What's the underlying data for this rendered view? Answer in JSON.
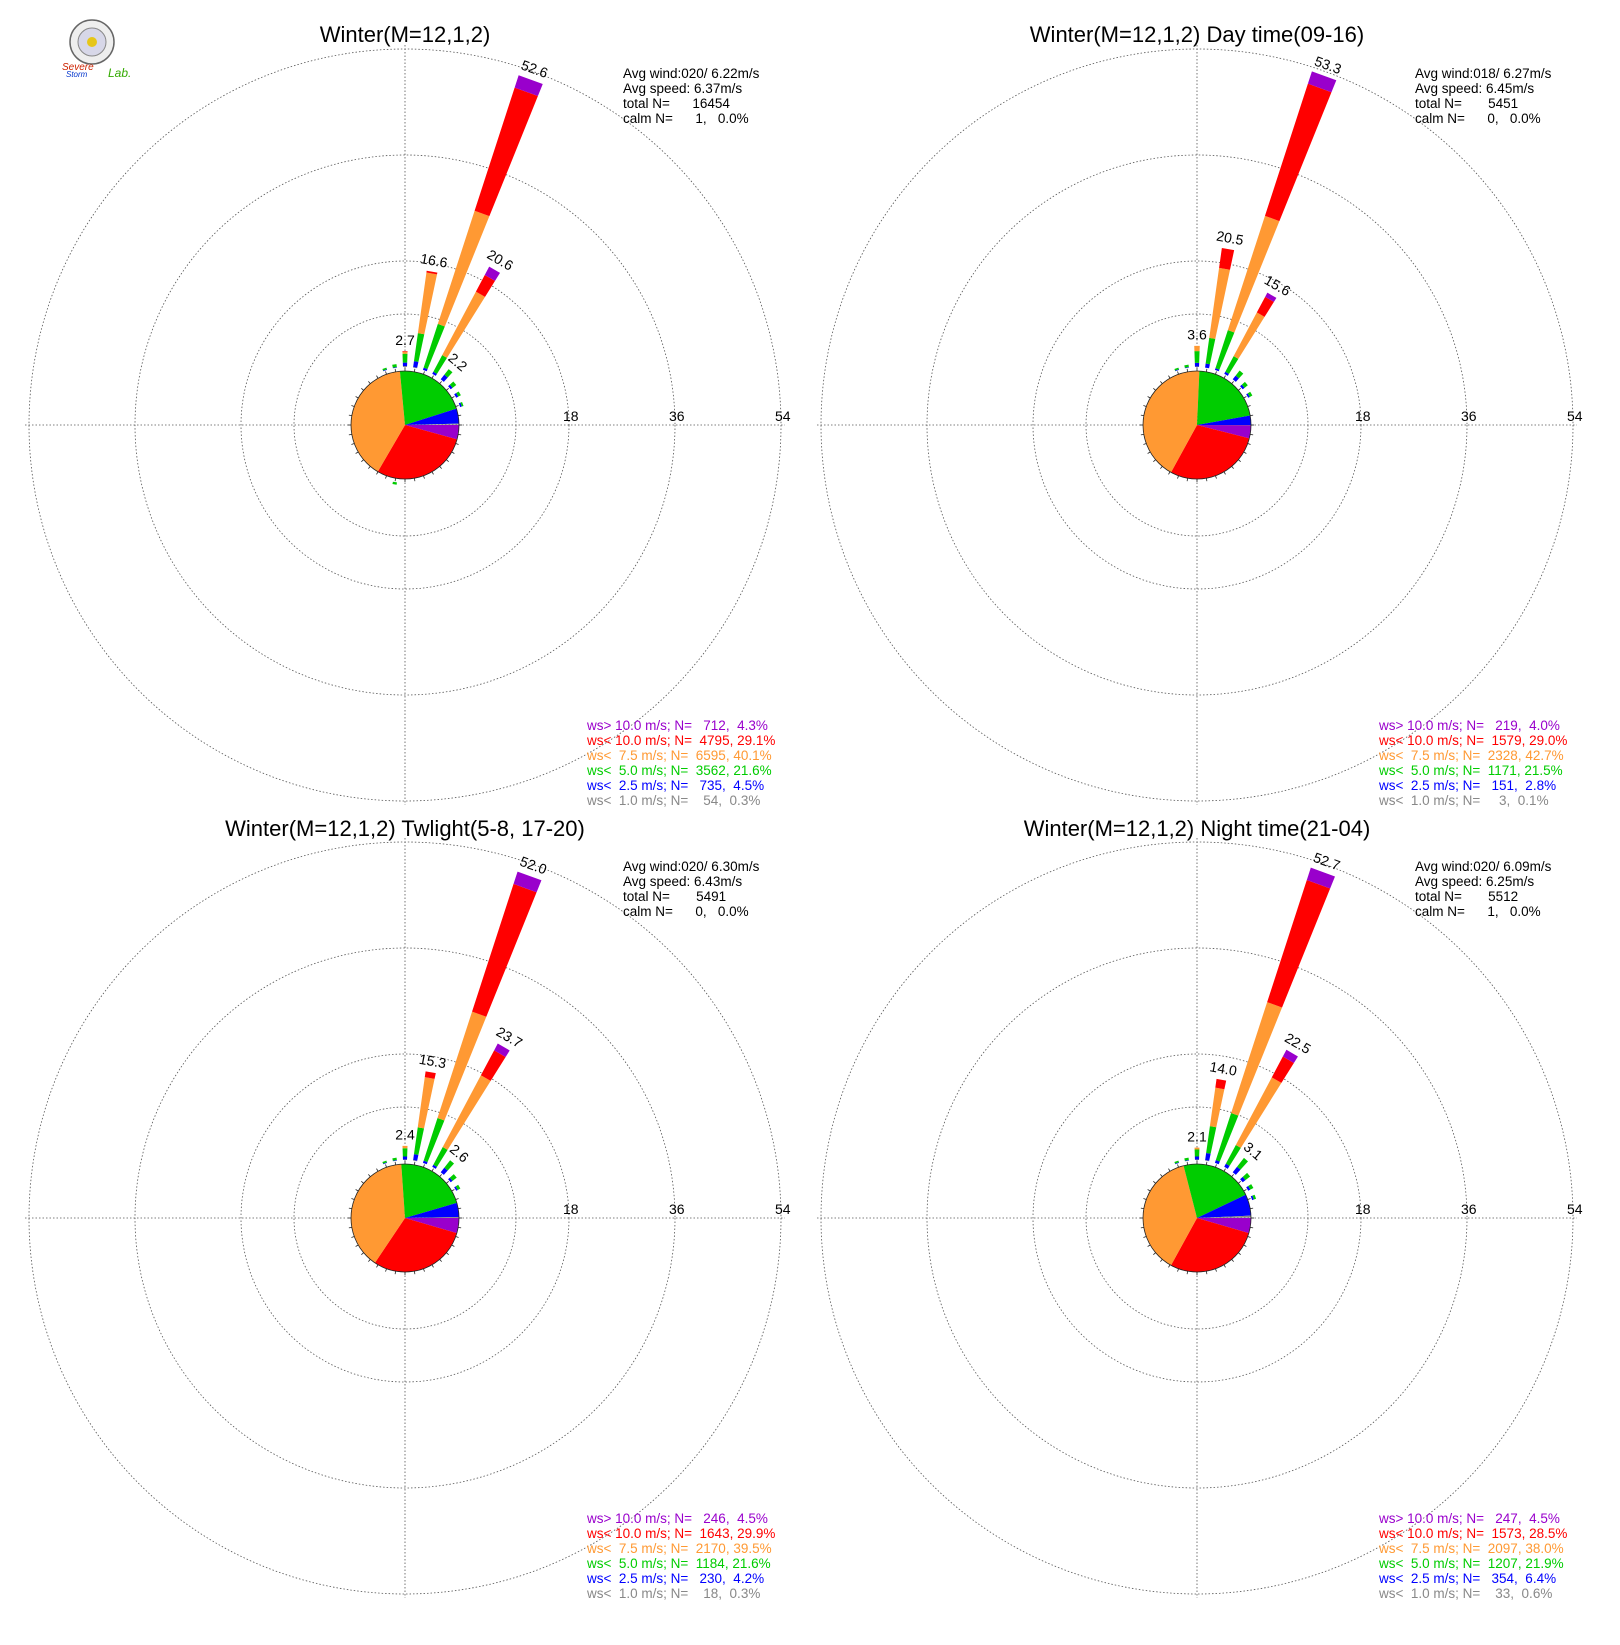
{
  "logo": {
    "text_1": "Severe",
    "text_2": "Storm",
    "text_3": "Lab."
  },
  "colors": {
    "gt10": "#9900cc",
    "lt10": "#ff0000",
    "lt75": "#ff9933",
    "lt5": "#00cc00",
    "lt25": "#0000ff",
    "lt1": "#888888",
    "grid": "#555555"
  },
  "chart_data": [
    {
      "type": "wind-rose",
      "title": "Winter(M=12,1,2)",
      "rlim": [
        0,
        54
      ],
      "ring_labels": [
        "18",
        "36",
        "54"
      ],
      "stats": {
        "avg_wind": "Avg wind:020/ 6.22m/s",
        "avg_speed": "Avg speed: 6.37m/s",
        "total": "total N=      16454",
        "calm": "calm N=      1,   0.0%"
      },
      "legend": [
        {
          "text": "ws> 10.0 m/s; N=   712,  4.3%",
          "color": "gt10"
        },
        {
          "text": "ws< 10.0 m/s; N=  4795, 29.1%",
          "color": "lt10"
        },
        {
          "text": "ws<  7.5 m/s; N=  6595, 40.1%",
          "color": "lt75"
        },
        {
          "text": "ws<  5.0 m/s; N=  3562, 21.6%",
          "color": "lt5"
        },
        {
          "text": "ws<  2.5 m/s; N=   735,  4.5%",
          "color": "lt25"
        },
        {
          "text": "ws<  1.0 m/s; N=    54,  0.3%",
          "color": "lt1"
        }
      ],
      "pie": [
        {
          "cat": "gt10",
          "pct": 4.3
        },
        {
          "cat": "lt10",
          "pct": 29.1
        },
        {
          "cat": "lt75",
          "pct": 40.1
        },
        {
          "cat": "lt5",
          "pct": 21.6
        },
        {
          "cat": "lt25",
          "pct": 4.5
        },
        {
          "cat": "lt1",
          "pct": 0.3
        }
      ],
      "bars": [
        {
          "dir": 0,
          "total": 2.7,
          "label": "2.7",
          "segs": [
            0.15,
            0.6,
            1.5,
            0.35,
            0.1,
            0
          ]
        },
        {
          "dir": 10,
          "total": 16.6,
          "label": "16.6",
          "segs": [
            0.1,
            1.0,
            4.8,
            10.4,
            0.3,
            0
          ]
        },
        {
          "dir": 20,
          "total": 52.6,
          "label": "52.6",
          "segs": [
            0,
            0.4,
            7.8,
            20.2,
            22.0,
            2.2
          ]
        },
        {
          "dir": 30,
          "total": 20.6,
          "label": "20.6",
          "segs": [
            0,
            0.4,
            3.2,
            12.2,
            3.2,
            1.6
          ]
        },
        {
          "dir": 40,
          "total": 2.2,
          "label": "2.2",
          "segs": [
            0,
            1.0,
            1.2,
            0,
            0,
            0
          ]
        },
        {
          "dir": 50,
          "total": 1.2,
          "label": "",
          "segs": [
            0,
            0.4,
            0.8,
            0,
            0,
            0
          ]
        },
        {
          "dir": 60,
          "total": 0.9,
          "label": "",
          "segs": [
            0,
            0.4,
            0.5,
            0,
            0,
            0
          ]
        },
        {
          "dir": 70,
          "total": 0.6,
          "label": "",
          "segs": [
            0,
            0.3,
            0.3,
            0,
            0,
            0
          ]
        },
        {
          "dir": 350,
          "total": 0.6,
          "label": "",
          "segs": [
            0,
            0.1,
            0.5,
            0,
            0,
            0
          ]
        },
        {
          "dir": 340,
          "total": 0.4,
          "label": "",
          "segs": [
            0,
            0.1,
            0.3,
            0,
            0,
            0
          ]
        },
        {
          "dir": 190,
          "total": 0.4,
          "label": "",
          "segs": [
            0,
            0,
            0.4,
            0,
            0,
            0
          ]
        }
      ]
    },
    {
      "type": "wind-rose",
      "title": "Winter(M=12,1,2) Day time(09-16)",
      "rlim": [
        0,
        54
      ],
      "ring_labels": [
        "18",
        "36",
        "54"
      ],
      "stats": {
        "avg_wind": "Avg wind:018/ 6.27m/s",
        "avg_speed": "Avg speed: 6.45m/s",
        "total": "total N=       5451",
        "calm": "calm N=      0,   0.0%"
      },
      "legend": [
        {
          "text": "ws> 10.0 m/s; N=   219,  4.0%",
          "color": "gt10"
        },
        {
          "text": "ws< 10.0 m/s; N=  1579, 29.0%",
          "color": "lt10"
        },
        {
          "text": "ws<  7.5 m/s; N=  2328, 42.7%",
          "color": "lt75"
        },
        {
          "text": "ws<  5.0 m/s; N=  1171, 21.5%",
          "color": "lt5"
        },
        {
          "text": "ws<  2.5 m/s; N=   151,  2.8%",
          "color": "lt25"
        },
        {
          "text": "ws<  1.0 m/s; N=     3,  0.1%",
          "color": "lt1"
        }
      ],
      "pie": [
        {
          "cat": "gt10",
          "pct": 4.0
        },
        {
          "cat": "lt10",
          "pct": 29.0
        },
        {
          "cat": "lt75",
          "pct": 42.7
        },
        {
          "cat": "lt5",
          "pct": 21.5
        },
        {
          "cat": "lt25",
          "pct": 2.8
        },
        {
          "cat": "lt1",
          "pct": 0.1
        }
      ],
      "bars": [
        {
          "dir": 0,
          "total": 3.6,
          "label": "3.6",
          "segs": [
            0.1,
            0.6,
            2.0,
            0.9,
            0,
            0
          ]
        },
        {
          "dir": 10,
          "total": 20.5,
          "label": "20.5",
          "segs": [
            0,
            0.7,
            4.4,
            12.0,
            3.4,
            0
          ]
        },
        {
          "dir": 20,
          "total": 53.3,
          "label": "53.3",
          "segs": [
            0,
            0.3,
            6.8,
            20.4,
            23.6,
            2.2
          ]
        },
        {
          "dir": 30,
          "total": 15.6,
          "label": "15.6",
          "segs": [
            0,
            0.4,
            3.0,
            8.4,
            3.0,
            0.8
          ]
        },
        {
          "dir": 40,
          "total": 1.9,
          "label": "",
          "segs": [
            0,
            0.8,
            1.1,
            0,
            0,
            0
          ]
        },
        {
          "dir": 50,
          "total": 1.1,
          "label": "",
          "segs": [
            0,
            0.4,
            0.7,
            0,
            0,
            0
          ]
        },
        {
          "dir": 60,
          "total": 0.8,
          "label": "",
          "segs": [
            0,
            0.3,
            0.5,
            0,
            0,
            0
          ]
        },
        {
          "dir": 350,
          "total": 0.5,
          "label": "",
          "segs": [
            0,
            0.1,
            0.4,
            0,
            0,
            0
          ]
        },
        {
          "dir": 340,
          "total": 0.4,
          "label": "",
          "segs": [
            0,
            0.1,
            0.3,
            0,
            0,
            0
          ]
        }
      ]
    },
    {
      "type": "wind-rose",
      "title": "Winter(M=12,1,2) Twlight(5-8, 17-20)",
      "rlim": [
        0,
        54
      ],
      "ring_labels": [
        "18",
        "36",
        "54"
      ],
      "stats": {
        "avg_wind": "Avg wind:020/ 6.30m/s",
        "avg_speed": "Avg speed: 6.43m/s",
        "total": "total N=       5491",
        "calm": "calm N=      0,   0.0%"
      },
      "legend": [
        {
          "text": "ws> 10.0 m/s; N=   246,  4.5%",
          "color": "gt10"
        },
        {
          "text": "ws< 10.0 m/s; N=  1643, 29.9%",
          "color": "lt10"
        },
        {
          "text": "ws<  7.5 m/s; N=  2170, 39.5%",
          "color": "lt75"
        },
        {
          "text": "ws<  5.0 m/s; N=  1184, 21.6%",
          "color": "lt5"
        },
        {
          "text": "ws<  2.5 m/s; N=   230,  4.2%",
          "color": "lt25"
        },
        {
          "text": "ws<  1.0 m/s; N=    18,  0.3%",
          "color": "lt1"
        }
      ],
      "pie": [
        {
          "cat": "gt10",
          "pct": 4.5
        },
        {
          "cat": "lt10",
          "pct": 29.9
        },
        {
          "cat": "lt75",
          "pct": 39.5
        },
        {
          "cat": "lt5",
          "pct": 21.6
        },
        {
          "cat": "lt25",
          "pct": 4.2
        },
        {
          "cat": "lt1",
          "pct": 0.3
        }
      ],
      "bars": [
        {
          "dir": 0,
          "total": 2.4,
          "label": "2.4",
          "segs": [
            0.1,
            0.5,
            1.4,
            0.4,
            0,
            0
          ]
        },
        {
          "dir": 10,
          "total": 15.3,
          "label": "15.3",
          "segs": [
            0.1,
            1.0,
            4.6,
            8.6,
            1.0,
            0
          ]
        },
        {
          "dir": 20,
          "total": 52.0,
          "label": "52.0",
          "segs": [
            0,
            0.4,
            7.6,
            19.0,
            22.8,
            2.2
          ]
        },
        {
          "dir": 30,
          "total": 23.7,
          "label": "23.7",
          "segs": [
            0,
            0.4,
            3.4,
            13.8,
            4.8,
            1.3
          ]
        },
        {
          "dir": 40,
          "total": 2.6,
          "label": "2.6",
          "segs": [
            0,
            1.0,
            1.6,
            0,
            0,
            0
          ]
        },
        {
          "dir": 50,
          "total": 1.3,
          "label": "",
          "segs": [
            0,
            0.4,
            0.9,
            0,
            0,
            0
          ]
        },
        {
          "dir": 60,
          "total": 0.8,
          "label": "",
          "segs": [
            0,
            0.3,
            0.5,
            0,
            0,
            0
          ]
        },
        {
          "dir": 350,
          "total": 0.5,
          "label": "",
          "segs": [
            0,
            0.1,
            0.4,
            0,
            0,
            0
          ]
        },
        {
          "dir": 340,
          "total": 0.4,
          "label": "",
          "segs": [
            0,
            0.1,
            0.3,
            0,
            0,
            0
          ]
        }
      ]
    },
    {
      "type": "wind-rose",
      "title": "Winter(M=12,1,2) Night time(21-04)",
      "rlim": [
        0,
        54
      ],
      "ring_labels": [
        "18",
        "36",
        "54"
      ],
      "stats": {
        "avg_wind": "Avg wind:020/ 6.09m/s",
        "avg_speed": "Avg speed: 6.25m/s",
        "total": "total N=       5512",
        "calm": "calm N=      1,   0.0%"
      },
      "legend": [
        {
          "text": "ws> 10.0 m/s; N=   247,  4.5%",
          "color": "gt10"
        },
        {
          "text": "ws< 10.0 m/s; N=  1573, 28.5%",
          "color": "lt10"
        },
        {
          "text": "ws<  7.5 m/s; N=  2097, 38.0%",
          "color": "lt75"
        },
        {
          "text": "ws<  5.0 m/s; N=  1207, 21.9%",
          "color": "lt5"
        },
        {
          "text": "ws<  2.5 m/s; N=   354,  6.4%",
          "color": "lt25"
        },
        {
          "text": "ws<  1.0 m/s; N=    33,  0.6%",
          "color": "lt1"
        }
      ],
      "pie": [
        {
          "cat": "gt10",
          "pct": 4.5
        },
        {
          "cat": "lt10",
          "pct": 28.5
        },
        {
          "cat": "lt75",
          "pct": 38.0
        },
        {
          "cat": "lt5",
          "pct": 21.9
        },
        {
          "cat": "lt25",
          "pct": 6.4
        },
        {
          "cat": "lt1",
          "pct": 0.6
        }
      ],
      "bars": [
        {
          "dir": 0,
          "total": 2.1,
          "label": "2.1",
          "segs": [
            0.1,
            0.5,
            1.2,
            0.3,
            0,
            0
          ]
        },
        {
          "dir": 10,
          "total": 14.0,
          "label": "14.0",
          "segs": [
            0.1,
            1.2,
            4.6,
            6.6,
            1.5,
            0
          ]
        },
        {
          "dir": 20,
          "total": 52.7,
          "label": "52.7",
          "segs": [
            0,
            0.5,
            8.4,
            19.8,
            21.8,
            2.2
          ]
        },
        {
          "dir": 30,
          "total": 22.5,
          "label": "22.5",
          "segs": [
            0,
            0.6,
            3.6,
            13.0,
            4.0,
            1.3
          ]
        },
        {
          "dir": 40,
          "total": 3.1,
          "label": "3.1",
          "segs": [
            0,
            1.2,
            1.9,
            0,
            0,
            0
          ]
        },
        {
          "dir": 50,
          "total": 1.6,
          "label": "",
          "segs": [
            0,
            0.6,
            1.0,
            0,
            0,
            0
          ]
        },
        {
          "dir": 60,
          "total": 1.0,
          "label": "",
          "segs": [
            0,
            0.4,
            0.6,
            0,
            0,
            0
          ]
        },
        {
          "dir": 70,
          "total": 0.7,
          "label": "",
          "segs": [
            0,
            0.3,
            0.4,
            0,
            0,
            0
          ]
        },
        {
          "dir": 350,
          "total": 0.5,
          "label": "",
          "segs": [
            0,
            0.1,
            0.4,
            0,
            0,
            0
          ]
        },
        {
          "dir": 340,
          "total": 0.4,
          "label": "",
          "segs": [
            0,
            0.1,
            0.3,
            0,
            0,
            0
          ]
        }
      ]
    }
  ]
}
